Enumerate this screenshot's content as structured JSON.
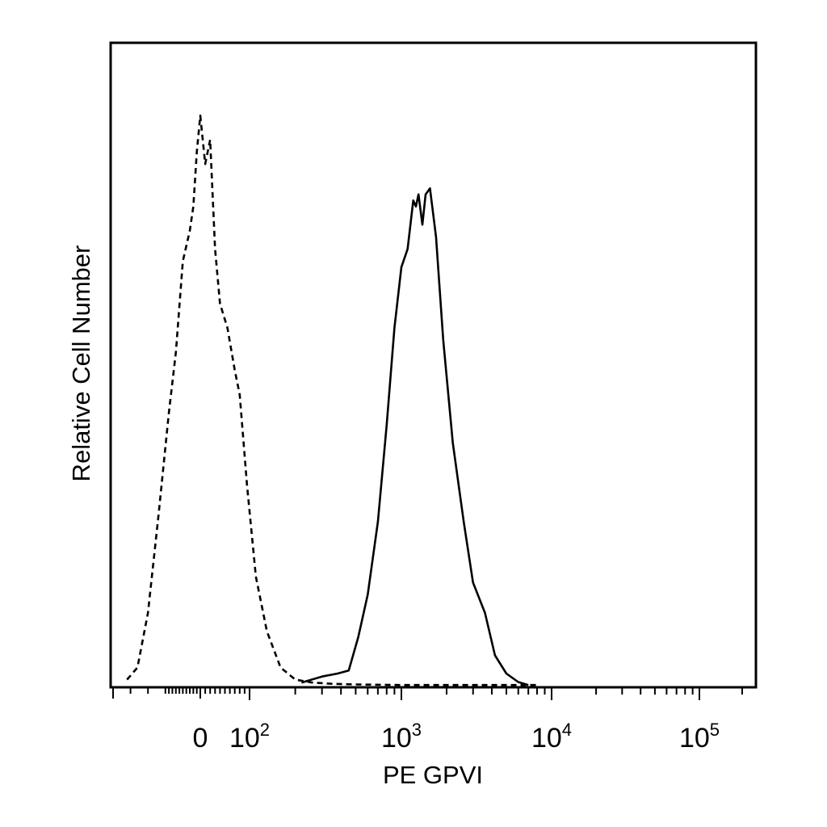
{
  "chart_data": {
    "type": "line",
    "xlabel": "PE GPVI",
    "ylabel": "Relative Cell Number",
    "x_scale": "biexponential",
    "xlim": [
      -250,
      250000
    ],
    "ylim": [
      0,
      100
    ],
    "y_ticks_shown": false,
    "grid": false,
    "legend": "none",
    "x_tick_labels": [
      {
        "value": 0,
        "base": "0",
        "exp": ""
      },
      {
        "value": 100,
        "base": "10",
        "exp": "2"
      },
      {
        "value": 1000,
        "base": "10",
        "exp": "3"
      },
      {
        "value": 10000,
        "base": "10",
        "exp": "4"
      },
      {
        "value": 100000,
        "base": "10",
        "exp": "5"
      }
    ],
    "series": [
      {
        "style": "dashed",
        "color": "#000000",
        "x": [
          -210,
          -180,
          -150,
          -120,
          -90,
          -70,
          -50,
          -30,
          -20,
          -10,
          0,
          10,
          20,
          30,
          40,
          55,
          70,
          80,
          95,
          110,
          130,
          160,
          200,
          260,
          350,
          500,
          1000,
          3000,
          8000
        ],
        "y": [
          1,
          3,
          12,
          28,
          45,
          55,
          70,
          75,
          79,
          88,
          94,
          86,
          90,
          72,
          63,
          59,
          52,
          48,
          33,
          18,
          9,
          3,
          1,
          0.5,
          0.3,
          0.2,
          0.1,
          0.1,
          0.1
        ]
      },
      {
        "style": "solid",
        "color": "#000000",
        "x": [
          220,
          300,
          380,
          450,
          520,
          600,
          700,
          800,
          900,
          1000,
          1100,
          1200,
          1250,
          1300,
          1380,
          1450,
          1550,
          1700,
          1900,
          2200,
          2600,
          3000,
          3600,
          4200,
          5000,
          6000,
          7000
        ],
        "y": [
          0.5,
          1.5,
          2,
          2.5,
          8,
          15,
          27,
          43,
          59,
          69,
          72,
          80,
          79,
          81,
          76,
          81,
          82,
          74,
          57,
          40,
          27,
          17,
          12,
          5,
          2,
          0.6,
          0.1
        ]
      }
    ]
  }
}
